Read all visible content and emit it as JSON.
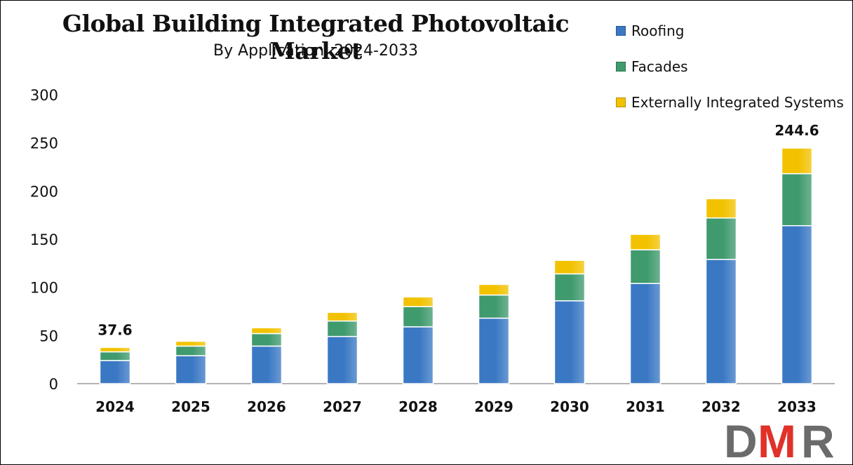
{
  "title": "Global Building Integrated Photovoltaic Market",
  "subtitle": "By Application, 2024-2033",
  "logo_text": "DMR",
  "colors": {
    "roofing": "#3a78c4",
    "facades": "#3f9a6e",
    "external": "#f2c200",
    "logo_dark": "#6b6b6b",
    "logo_red": "#e0312a"
  },
  "chart_data": {
    "type": "bar",
    "stacked": true,
    "title": "Global Building Integrated Photovoltaic Market",
    "subtitle": "By Application, 2024-2033",
    "xlabel": "",
    "ylabel": "",
    "ylim": [
      0,
      300
    ],
    "yticks": [
      0,
      50,
      100,
      150,
      200,
      250,
      300
    ],
    "grid": false,
    "legend_position": "top-right",
    "categories": [
      "2024",
      "2025",
      "2026",
      "2027",
      "2028",
      "2029",
      "2030",
      "2031",
      "2032",
      "2033"
    ],
    "series": [
      {
        "name": "Roofing",
        "color": "#3a78c4",
        "values": [
          24,
          29,
          39,
          49,
          59,
          68,
          86,
          104,
          129,
          164
        ]
      },
      {
        "name": "Facades",
        "color": "#3f9a6e",
        "values": [
          9,
          10,
          13,
          16,
          21,
          24,
          28,
          35,
          43,
          54
        ]
      },
      {
        "name": "Externally Integrated Systems",
        "color": "#f2c200",
        "values": [
          4.6,
          5,
          6,
          9,
          10,
          11,
          14,
          16,
          20,
          26.6
        ]
      }
    ],
    "data_labels": [
      {
        "category": "2024",
        "text": "37.6"
      },
      {
        "category": "2033",
        "text": "244.6"
      }
    ]
  }
}
